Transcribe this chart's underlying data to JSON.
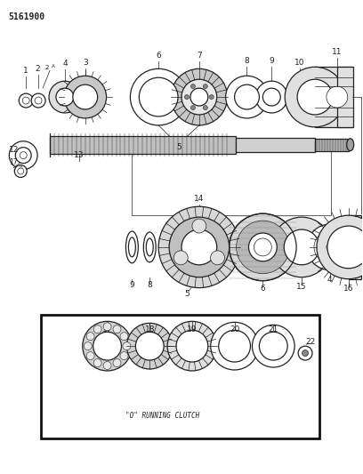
{
  "title": "5161900",
  "background_color": "#ffffff",
  "line_color": "#222222",
  "fig_width": 4.08,
  "fig_height": 5.33,
  "dpi": 100,
  "bottom_box_label": "\"O\" RUNNING CLUTCH"
}
